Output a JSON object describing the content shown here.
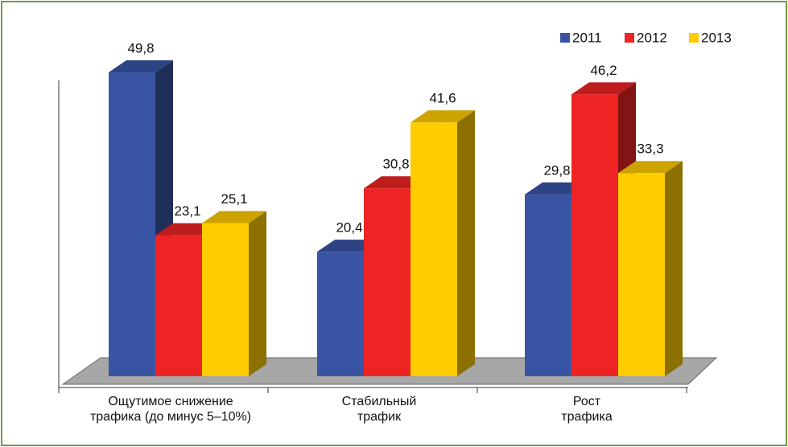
{
  "chart_data": {
    "type": "bar3d",
    "categories": [
      "Ощутимое снижение\nтрафика (до минус 5–10%)",
      "Стабильный\nтрафик",
      "Рост\nтрафика"
    ],
    "series": [
      {
        "name": "2011",
        "color": "#3a54a4",
        "values": [
          49.8,
          20.4,
          29.8
        ],
        "value_labels": [
          "49,8",
          "20,4",
          "29,8"
        ]
      },
      {
        "name": "2012",
        "color": "#ee2424",
        "values": [
          23.1,
          30.8,
          46.2
        ],
        "value_labels": [
          "23,1",
          "30,8",
          "46,2"
        ]
      },
      {
        "name": "2013",
        "color": "#ffcc00",
        "values": [
          25.1,
          41.6,
          33.3
        ],
        "value_labels": [
          "25,1",
          "41,6",
          "33,3"
        ]
      }
    ],
    "ylim": [
      0,
      50
    ],
    "legend": "top-right"
  }
}
